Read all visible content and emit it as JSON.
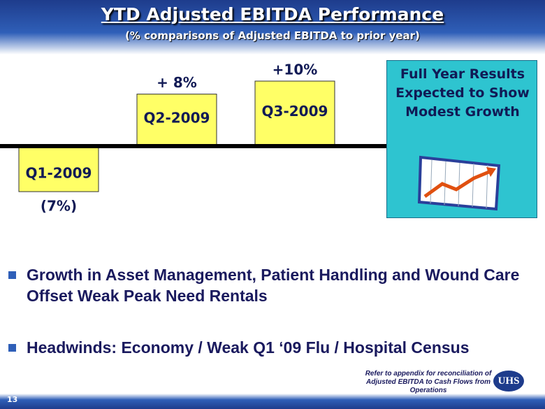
{
  "header": {
    "title": "YTD Adjusted EBITDA Performance",
    "subtitle": "(% comparisons of Adjusted EBITDA to prior year)"
  },
  "chart_data": {
    "type": "bar",
    "categories": [
      "Q1-2009",
      "Q2-2009",
      "Q3-2009"
    ],
    "values": [
      -7,
      8,
      10
    ],
    "value_labels": [
      "(7%)",
      "+ 8%",
      "+10%"
    ],
    "color": "#ffff66"
  },
  "callout": {
    "text": "Full Year Results Expected to Show Modest Growth"
  },
  "bullets": [
    "Growth in Asset Management, Patient Handling and Wound Care Offset Weak Peak Need Rentals",
    "Headwinds: Economy / Weak Q1 ‘09 Flu / Hospital Census"
  ],
  "footer": {
    "note": "Refer to appendix for reconciliation of Adjusted EBITDA to Cash Flows from Operations",
    "page": "13",
    "logo": "UHS"
  }
}
